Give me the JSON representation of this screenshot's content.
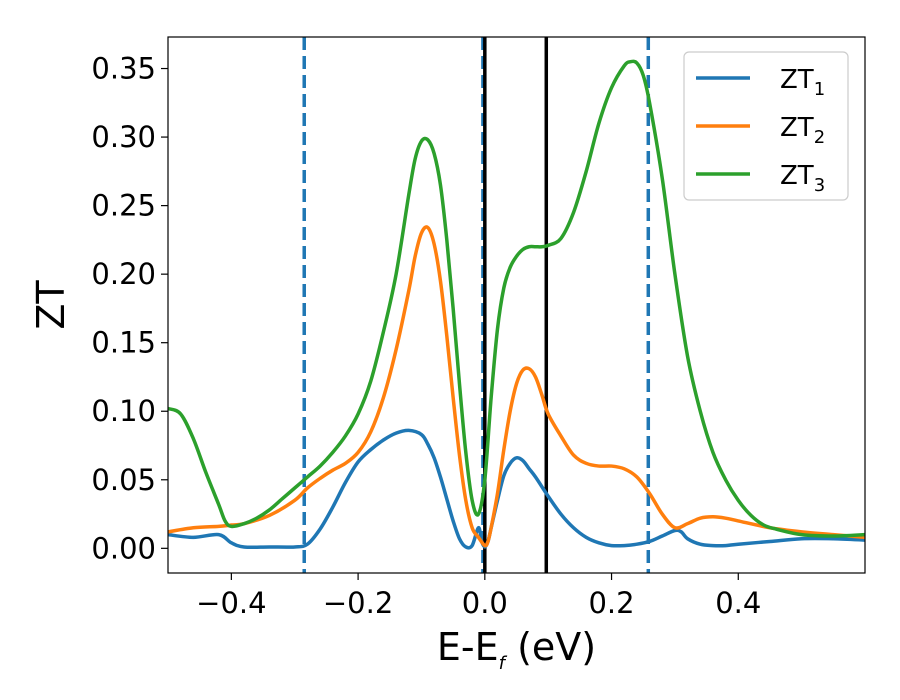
{
  "chart_data": {
    "type": "line",
    "xlabel": "E-E",
    "xlabel_sub": "f",
    "xlabel_unit": " (eV)",
    "ylabel": "ZT",
    "xlim": [
      -0.5,
      0.6
    ],
    "ylim": [
      -0.018,
      0.373
    ],
    "xticks": [
      {
        "value": -0.4,
        "label": "−0.4"
      },
      {
        "value": -0.2,
        "label": "−0.2"
      },
      {
        "value": 0.0,
        "label": "0.0"
      },
      {
        "value": 0.2,
        "label": "0.2"
      },
      {
        "value": 0.4,
        "label": "0.4"
      }
    ],
    "yticks": [
      {
        "value": 0.0,
        "label": "0.00"
      },
      {
        "value": 0.05,
        "label": "0.05"
      },
      {
        "value": 0.1,
        "label": "0.10"
      },
      {
        "value": 0.15,
        "label": "0.15"
      },
      {
        "value": 0.2,
        "label": "0.20"
      },
      {
        "value": 0.25,
        "label": "0.25"
      },
      {
        "value": 0.3,
        "label": "0.30"
      },
      {
        "value": 0.35,
        "label": "0.35"
      }
    ],
    "grid": false,
    "legend_position": "top-right",
    "vertical_lines": [
      {
        "x": -0.285,
        "color": "#1f77b4",
        "style": "dashed"
      },
      {
        "x": -0.003,
        "color": "#1f77b4",
        "style": "dashed"
      },
      {
        "x": 0.258,
        "color": "#1f77b4",
        "style": "dashed"
      },
      {
        "x": 0.0,
        "color": "#000000",
        "style": "solid"
      },
      {
        "x": 0.097,
        "color": "#000000",
        "style": "solid"
      }
    ],
    "series": [
      {
        "name": "ZT",
        "name_sub": "1",
        "color": "#1f77b4",
        "x": [
          -0.5,
          -0.46,
          -0.42,
          -0.4,
          -0.38,
          -0.34,
          -0.3,
          -0.28,
          -0.26,
          -0.24,
          -0.22,
          -0.2,
          -0.18,
          -0.16,
          -0.14,
          -0.12,
          -0.1,
          -0.09,
          -0.08,
          -0.07,
          -0.06,
          -0.05,
          -0.04,
          -0.03,
          -0.02,
          -0.01,
          -0.005,
          0.0,
          0.005,
          0.01,
          0.02,
          0.03,
          0.04,
          0.05,
          0.06,
          0.07,
          0.08,
          0.1,
          0.12,
          0.14,
          0.16,
          0.18,
          0.2,
          0.22,
          0.24,
          0.26,
          0.28,
          0.3,
          0.31,
          0.32,
          0.34,
          0.36,
          0.38,
          0.4,
          0.45,
          0.5,
          0.55,
          0.6
        ],
        "y": [
          0.01,
          0.008,
          0.01,
          0.004,
          0.001,
          0.001,
          0.001,
          0.003,
          0.014,
          0.03,
          0.048,
          0.063,
          0.072,
          0.079,
          0.084,
          0.086,
          0.083,
          0.076,
          0.066,
          0.052,
          0.036,
          0.02,
          0.007,
          0.001,
          0.002,
          0.015,
          0.005,
          0.001,
          0.005,
          0.015,
          0.035,
          0.053,
          0.062,
          0.066,
          0.064,
          0.058,
          0.052,
          0.038,
          0.025,
          0.015,
          0.008,
          0.004,
          0.002,
          0.002,
          0.003,
          0.005,
          0.009,
          0.013,
          0.012,
          0.007,
          0.003,
          0.002,
          0.002,
          0.003,
          0.005,
          0.007,
          0.007,
          0.006
        ]
      },
      {
        "name": "ZT",
        "name_sub": "2",
        "color": "#ff7f0e",
        "x": [
          -0.5,
          -0.46,
          -0.42,
          -0.4,
          -0.38,
          -0.34,
          -0.3,
          -0.28,
          -0.26,
          -0.24,
          -0.22,
          -0.2,
          -0.18,
          -0.16,
          -0.14,
          -0.12,
          -0.11,
          -0.1,
          -0.09,
          -0.08,
          -0.07,
          -0.06,
          -0.05,
          -0.04,
          -0.03,
          -0.02,
          -0.01,
          0.0,
          0.005,
          0.01,
          0.02,
          0.03,
          0.04,
          0.05,
          0.06,
          0.07,
          0.08,
          0.09,
          0.1,
          0.12,
          0.14,
          0.16,
          0.18,
          0.2,
          0.22,
          0.24,
          0.26,
          0.28,
          0.3,
          0.32,
          0.34,
          0.36,
          0.38,
          0.4,
          0.45,
          0.5,
          0.55,
          0.6
        ],
        "y": [
          0.012,
          0.015,
          0.016,
          0.017,
          0.018,
          0.024,
          0.035,
          0.044,
          0.051,
          0.057,
          0.062,
          0.07,
          0.085,
          0.11,
          0.145,
          0.188,
          0.213,
          0.23,
          0.234,
          0.222,
          0.195,
          0.155,
          0.11,
          0.068,
          0.035,
          0.015,
          0.008,
          0.002,
          0.005,
          0.015,
          0.04,
          0.072,
          0.1,
          0.12,
          0.13,
          0.131,
          0.125,
          0.112,
          0.098,
          0.082,
          0.068,
          0.062,
          0.06,
          0.06,
          0.058,
          0.052,
          0.04,
          0.025,
          0.015,
          0.018,
          0.022,
          0.023,
          0.022,
          0.02,
          0.015,
          0.012,
          0.01,
          0.008
        ]
      },
      {
        "name": "ZT",
        "name_sub": "3",
        "color": "#2ca02c",
        "x": [
          -0.5,
          -0.48,
          -0.46,
          -0.44,
          -0.42,
          -0.41,
          -0.4,
          -0.38,
          -0.36,
          -0.34,
          -0.32,
          -0.3,
          -0.28,
          -0.26,
          -0.24,
          -0.22,
          -0.2,
          -0.18,
          -0.16,
          -0.14,
          -0.12,
          -0.11,
          -0.1,
          -0.09,
          -0.08,
          -0.07,
          -0.06,
          -0.05,
          -0.04,
          -0.03,
          -0.02,
          -0.01,
          0.0,
          0.01,
          0.02,
          0.03,
          0.04,
          0.05,
          0.06,
          0.07,
          0.08,
          0.09,
          0.1,
          0.12,
          0.14,
          0.16,
          0.18,
          0.2,
          0.22,
          0.23,
          0.24,
          0.25,
          0.26,
          0.28,
          0.3,
          0.32,
          0.34,
          0.36,
          0.38,
          0.4,
          0.42,
          0.44,
          0.46,
          0.5,
          0.55,
          0.6
        ],
        "y": [
          0.102,
          0.098,
          0.08,
          0.055,
          0.032,
          0.02,
          0.016,
          0.018,
          0.022,
          0.028,
          0.036,
          0.044,
          0.052,
          0.06,
          0.07,
          0.082,
          0.098,
          0.122,
          0.158,
          0.2,
          0.258,
          0.284,
          0.297,
          0.298,
          0.288,
          0.265,
          0.225,
          0.175,
          0.12,
          0.07,
          0.035,
          0.025,
          0.05,
          0.11,
          0.16,
          0.19,
          0.205,
          0.213,
          0.218,
          0.22,
          0.22,
          0.22,
          0.221,
          0.226,
          0.245,
          0.275,
          0.31,
          0.336,
          0.352,
          0.355,
          0.354,
          0.345,
          0.325,
          0.27,
          0.2,
          0.14,
          0.1,
          0.07,
          0.05,
          0.035,
          0.024,
          0.017,
          0.014,
          0.01,
          0.009,
          0.01
        ]
      }
    ]
  }
}
